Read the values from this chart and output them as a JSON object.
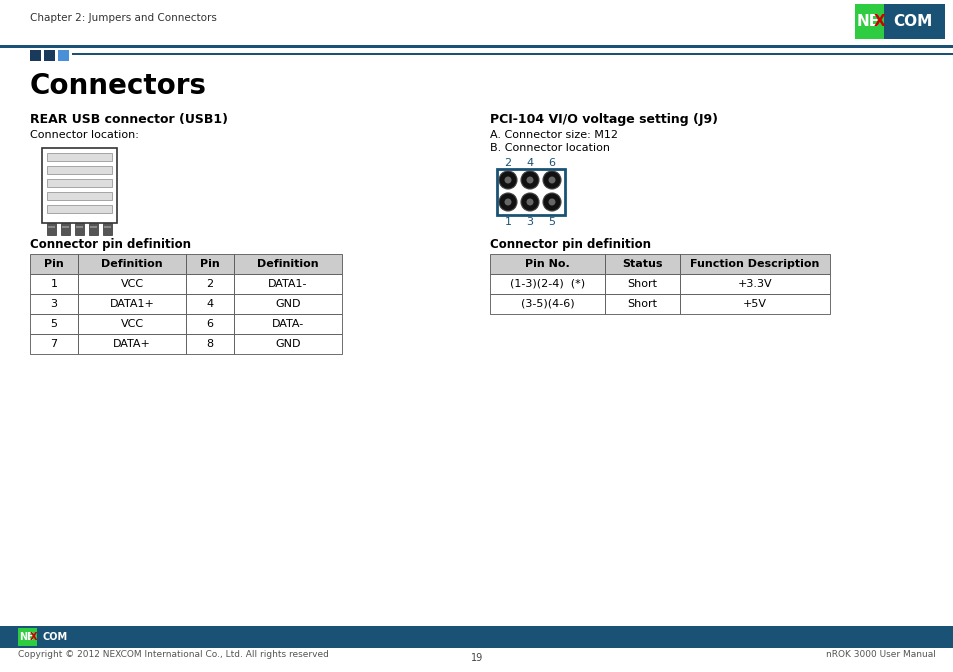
{
  "page_title": "Chapter 2: Jumpers and Connectors",
  "main_title": "Connectors",
  "section1_title": "REAR USB connector (USB1)",
  "section1_sub": "Connector location:",
  "section2_title": "PCI-104 VI/O voltage setting (J9)",
  "section2_sub_a": "A. Connector size: M12",
  "section2_sub_b": "B. Connector location",
  "table1_title": "Connector pin definition",
  "table1_headers": [
    "Pin",
    "Definition",
    "Pin",
    "Definition"
  ],
  "table1_rows": [
    [
      "1",
      "VCC",
      "2",
      "DATA1-"
    ],
    [
      "3",
      "DATA1+",
      "4",
      "GND"
    ],
    [
      "5",
      "VCC",
      "6",
      "DATA-"
    ],
    [
      "7",
      "DATA+",
      "8",
      "GND"
    ]
  ],
  "table2_title": "Connector pin definition",
  "table2_headers": [
    "Pin No.",
    "Status",
    "Function Description"
  ],
  "table2_rows": [
    [
      "(1-3)(2-4)  (*)",
      "Short",
      "+3.3V"
    ],
    [
      "(3-5)(4-6)",
      "Short",
      "+5V"
    ]
  ],
  "connector_numbers_top": [
    "2",
    "4",
    "6"
  ],
  "connector_numbers_bottom": [
    "1",
    "3",
    "5"
  ],
  "footer_left": "Copyright © 2012 NEXCOM International Co., Ltd. All rights reserved",
  "footer_center": "19",
  "footer_right": "nROK 3000 User Manual",
  "blue": "#1a5276",
  "green": "#1e8449",
  "red_x": "#cc0000",
  "footer_bar_color": "#1a5276",
  "connector_box_color": "#1a5276",
  "sq_dark": "#1a3a5c",
  "sq_mid": "#2471a3"
}
